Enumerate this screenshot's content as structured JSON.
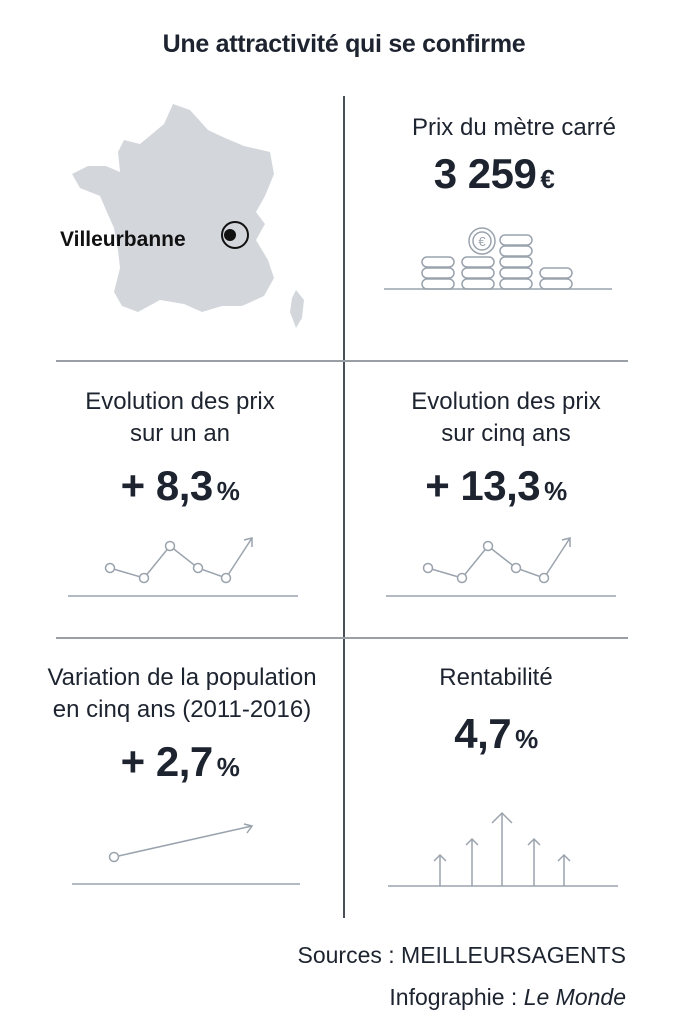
{
  "title": "Une attractivité qui se confirme",
  "map": {
    "city": "Villeurbanne",
    "icon": "france-map-icon"
  },
  "panels": {
    "price_m2": {
      "label": "Prix du mètre carré",
      "value": "3 259",
      "unit": "€",
      "icon": "coins-euro-icon"
    },
    "evol_one_year": {
      "label_line1": "Evolution des prix",
      "label_line2": "sur un an",
      "value": "+ 8,3",
      "unit": "%",
      "icon": "line-trend-icon"
    },
    "evol_five_year": {
      "label_line1": "Evolution des prix",
      "label_line2": "sur cinq ans",
      "value": "+ 13,3",
      "unit": "%",
      "icon": "line-trend-icon"
    },
    "population": {
      "label_line1": "Variation de la population",
      "label_line2": "en cinq ans (2011-2016)",
      "value": "+ 2,7",
      "unit": "%",
      "icon": "rising-line-icon"
    },
    "yield": {
      "label": "Rentabilité",
      "value": "4,7",
      "unit": "%",
      "icon": "up-arrows-icon"
    }
  },
  "footer": {
    "sources": "Sources : MEILLEURSAGENTS",
    "credit_prefix": "Infographie :",
    "credit_name": "Le Monde"
  },
  "colors": {
    "text": "#1d2430",
    "map_fill": "#d3d7dc",
    "icon_stroke": "#9aa3ad",
    "rule": "#9a9ea5"
  }
}
